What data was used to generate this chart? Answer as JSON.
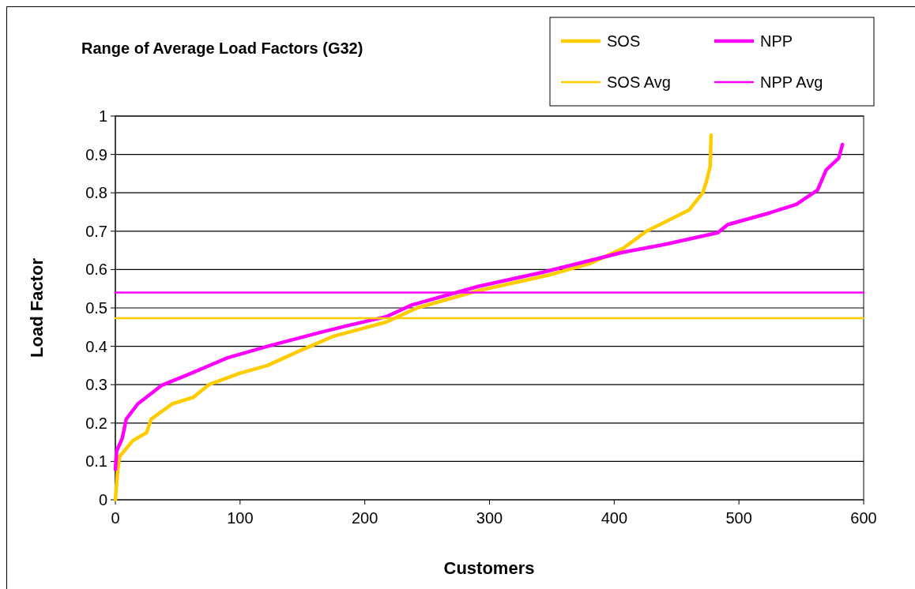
{
  "chart_data": {
    "type": "line",
    "title": "Range of Average Load Factors (G32)",
    "xlabel": "Customers",
    "ylabel": "Load Factor",
    "xlim": [
      0,
      600
    ],
    "xticks": [
      0,
      100,
      200,
      300,
      400,
      500,
      600
    ],
    "ylim": [
      0,
      1
    ],
    "yticks": [
      0,
      0.1,
      0.2,
      0.3,
      0.4,
      0.5,
      0.6,
      0.7,
      0.8,
      0.9,
      1
    ],
    "grid": "y",
    "legend": "top right",
    "line_style": "solid",
    "marker": "none",
    "series": [
      {
        "name": "SOS",
        "color": "#ffcc00",
        "x": [
          0,
          2,
          3.4,
          14,
          25,
          28.7,
          45.6,
          62.5,
          75,
          100,
          122,
          147,
          174,
          185,
          217,
          242,
          291,
          348,
          380,
          407,
          426,
          460,
          471,
          474,
          477,
          477.6
        ],
        "values": [
          0,
          0.08,
          0.113,
          0.154,
          0.175,
          0.21,
          0.25,
          0.267,
          0.3,
          0.33,
          0.35,
          0.387,
          0.425,
          0.435,
          0.463,
          0.5,
          0.545,
          0.586,
          0.615,
          0.655,
          0.7,
          0.755,
          0.8,
          0.83,
          0.87,
          0.95
        ]
      },
      {
        "name": "NPP",
        "color": "#ff00ff",
        "x": [
          0,
          1,
          5.5,
          8.7,
          18,
          37,
          58,
          90,
          122,
          164,
          185,
          217,
          238,
          291,
          343,
          407,
          440,
          483,
          491,
          525,
          546,
          563,
          570,
          580,
          583
        ],
        "values": [
          0.079,
          0.127,
          0.16,
          0.21,
          0.25,
          0.298,
          0.326,
          0.37,
          0.4,
          0.436,
          0.453,
          0.477,
          0.508,
          0.556,
          0.593,
          0.645,
          0.665,
          0.696,
          0.717,
          0.748,
          0.77,
          0.807,
          0.86,
          0.89,
          0.926
        ]
      },
      {
        "name": "SOS Avg",
        "color": "#ffcc00",
        "x": [
          0,
          600
        ],
        "values": [
          0.473,
          0.473
        ]
      },
      {
        "name": "NPP Avg",
        "color": "#ff00ff",
        "x": [
          0,
          600
        ],
        "values": [
          0.54,
          0.54
        ]
      }
    ]
  }
}
